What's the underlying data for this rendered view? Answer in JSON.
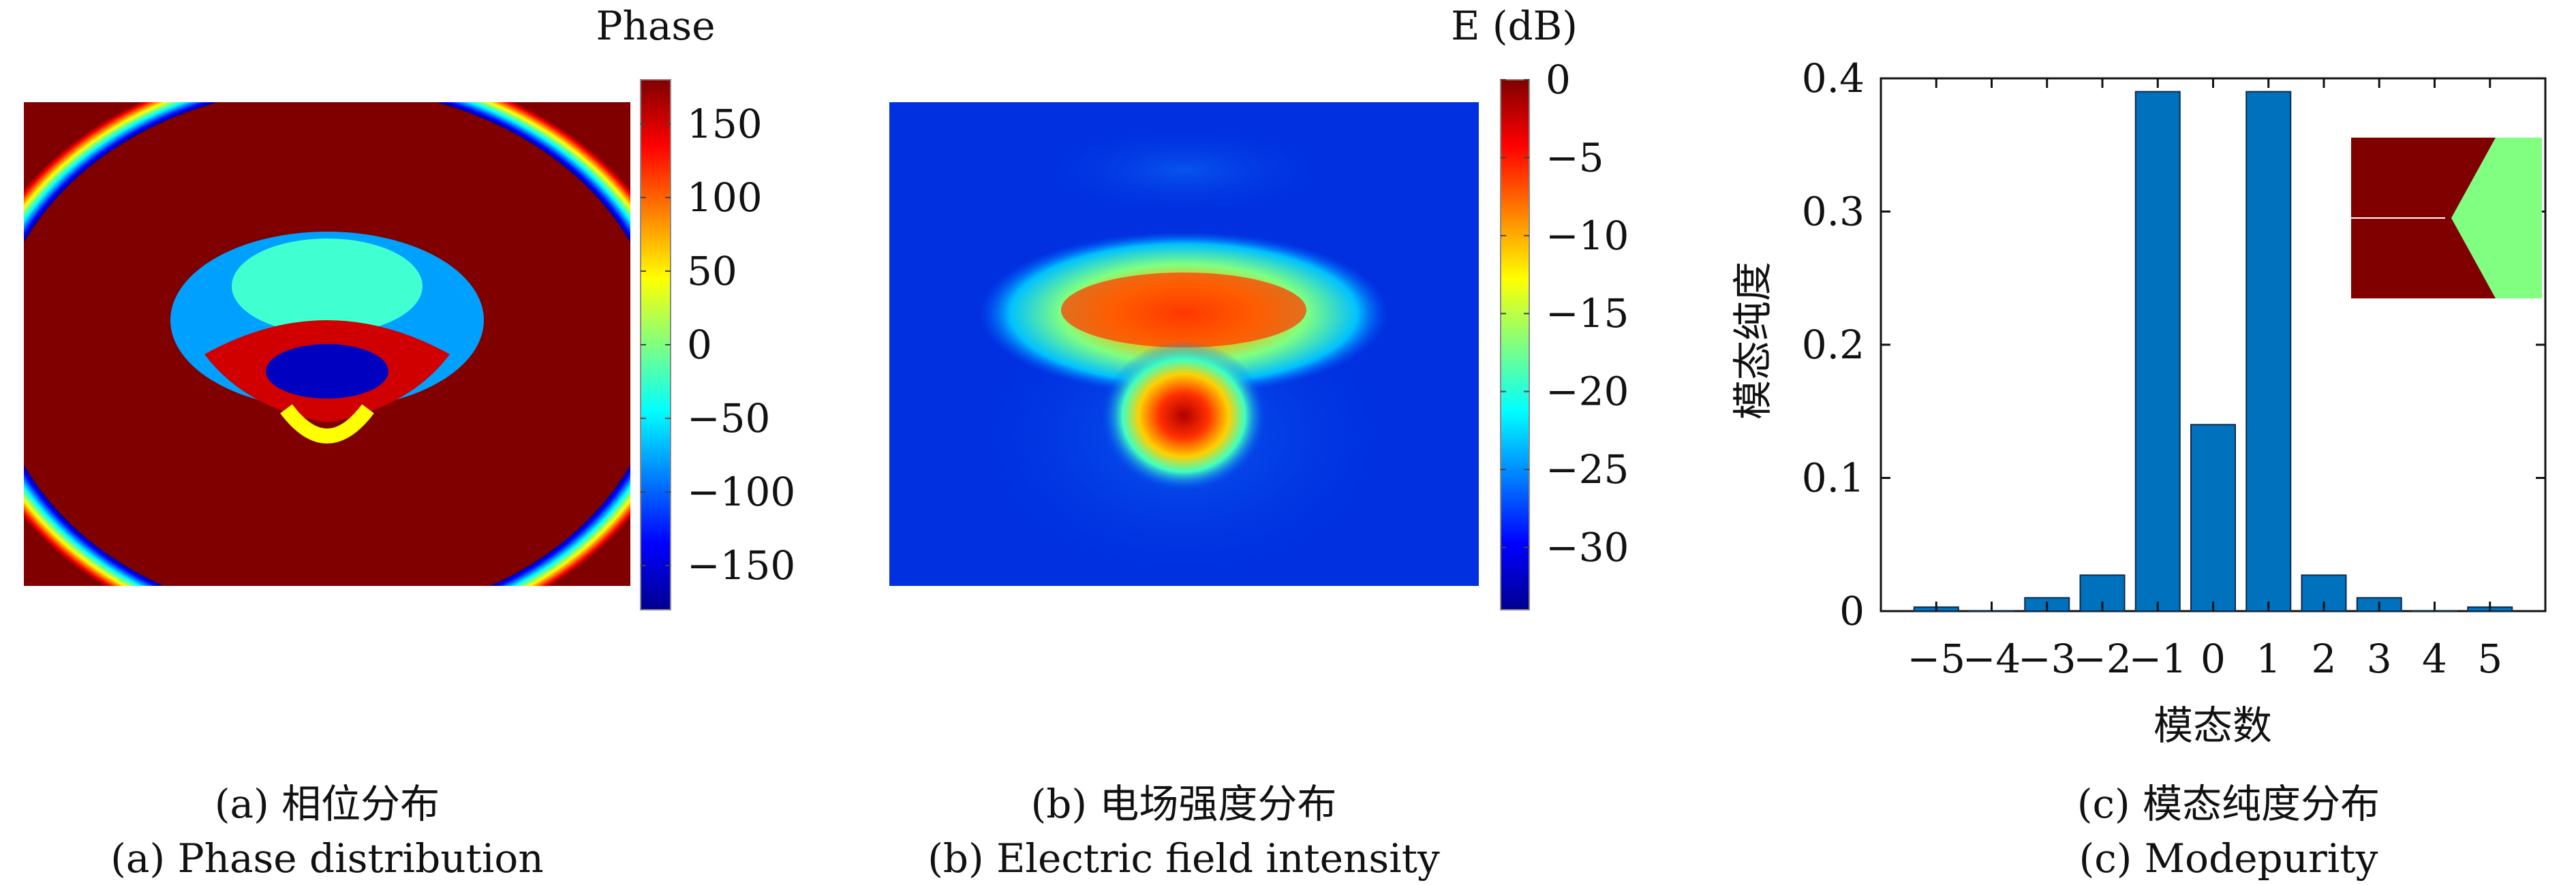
{
  "panel_a": {
    "colorbar_title": "Phase",
    "colorbar_ticks": [
      150,
      100,
      50,
      0,
      -50,
      -100,
      -150
    ],
    "colorbar_range": [
      -180,
      180
    ],
    "colormap": "jet",
    "caption_cn": "(a) 相位分布",
    "caption_en": "(a) Phase distribution"
  },
  "panel_b": {
    "colorbar_title": "E (dB)",
    "colorbar_ticks": [
      0,
      -5,
      -10,
      -15,
      -20,
      -25,
      -30
    ],
    "colorbar_range": [
      -34,
      0
    ],
    "colormap": "jet",
    "caption_cn": "(b) 电场强度分布",
    "caption_en": "(b) Electric field intensity"
  },
  "panel_c": {
    "caption_cn": "(c) 模态纯度分布",
    "caption_en": "(c) Modepurity"
  },
  "chart_data": {
    "type": "bar",
    "xlabel": "模态数",
    "ylabel": "模态纯度",
    "categories": [
      -5,
      -4,
      -3,
      -2,
      -1,
      0,
      1,
      2,
      3,
      4,
      5
    ],
    "values": [
      0.003,
      0.0,
      0.01,
      0.027,
      0.39,
      0.14,
      0.39,
      0.027,
      0.01,
      0.0,
      0.003
    ],
    "ylim": [
      0,
      0.4
    ],
    "xlim": [
      -6,
      6
    ],
    "yticks": [
      0,
      0.1,
      0.2,
      0.3,
      0.4
    ],
    "bar_color": "#0072BD",
    "grid": false,
    "inset_colors": {
      "dark": "#800000",
      "light": "#80FF80"
    }
  }
}
